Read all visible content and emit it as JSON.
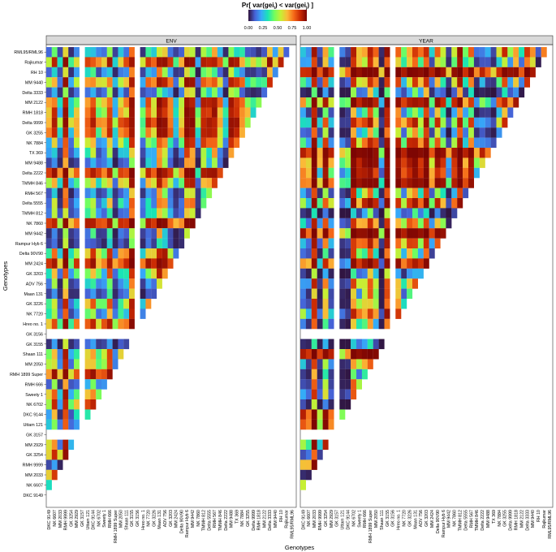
{
  "chart_data": {
    "type": "heatmap",
    "title": "Pr[ var(gei",
    "title_sub_i": "i",
    "title_mid": ") < var(gei",
    "title_sub_j": "j",
    "title_end": ") ]",
    "legend": {
      "ticks": [
        "0.00",
        "0.25",
        "0.50",
        "0.75",
        "1.00"
      ],
      "colormap": [
        "#30123b",
        "#4662d7",
        "#36aaf9",
        "#1ae4b6",
        "#72fe5e",
        "#c7ef34",
        "#fbb938",
        "#f56918",
        "#c92903",
        "#7a0403"
      ],
      "range": [
        0,
        1
      ],
      "placement": "top"
    },
    "xlabel": "Genotypes",
    "ylabel": "Genotypes",
    "panels": [
      "ENV",
      "YEAR"
    ],
    "genotypes_y": [
      "RML95/RML96",
      "Rajkumar",
      "RH 10",
      "MM 9440",
      "Delta 3333",
      "MM 2122",
      "RMH 1818",
      "Delta 9999",
      "GK 3255",
      "NK 7884",
      "TX 369",
      "MM 9488",
      "Delta 2222",
      "TMMH 846",
      "RMH 567",
      "Delta 5555",
      "TMMH 812",
      "NK 7860",
      "MM 9442",
      "Rampur Hyb 6",
      "Delta 90V90",
      "MM 2424",
      "GK 3203",
      "ADV 756",
      "Maan 131",
      "GK 3226",
      "NK 7720",
      "Hreo no. 1",
      "GK 3156",
      "GK 3155",
      "Shaan 111",
      "MM 2050",
      "RMH 1899 Super",
      "RMH 666",
      "Sweety 1",
      "NK 6702",
      "DKC 9144",
      "Uttam 121",
      "GK 3157",
      "MM 2929",
      "GK 3254",
      "RMH 9999",
      "MM 2033",
      "NK 6607",
      "DKC 9149"
    ],
    "genotypes_x": [
      "DKC 9149",
      "NK 6607",
      "MM 2033",
      "RMH 9999",
      "GK 3254",
      "MM 2929",
      "GK 3157",
      "Uttam 121",
      "DKC 9144",
      "NK 6702",
      "Sweety 1",
      "RMH 666",
      "RMH 1899 Super",
      "MM 2050",
      "Shaan 111",
      "GK 3155",
      "GK 3156",
      "Hreo no. 1",
      "NK 7720",
      "GK 3226",
      "Maan 131",
      "ADV 756",
      "GK 3203",
      "MM 2424",
      "Delta 90V90",
      "Rampur Hyb 6",
      "MM 9442",
      "NK 7860",
      "TMMH 812",
      "Delta 5555",
      "RMH 567",
      "TMMH 846",
      "Delta 2222",
      "MM 9488",
      "TX 369",
      "NK 7884",
      "GK 3255",
      "Delta 9999",
      "RMH 1818",
      "MM 2122",
      "Delta 3333",
      "MM 9440",
      "RH 10",
      "Rajkumar",
      "RML95/RML96"
    ],
    "missing_genotypes": [
      "GK 3156",
      "GK 3157"
    ],
    "note_values": "Lower-triangular matrix of probabilities in [0,1]; one value per (row i, column j) with j < number of columns for row i; cells involving missing genotypes are blank."
  }
}
